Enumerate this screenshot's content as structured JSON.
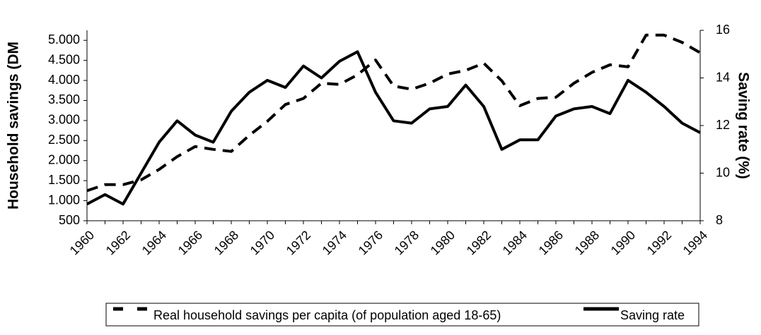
{
  "chart_data": {
    "type": "line",
    "y_label": "Household savings (DM",
    "y2_label": "Saving rate (%)",
    "x": [
      1960,
      1961,
      1962,
      1963,
      1964,
      1965,
      1966,
      1967,
      1968,
      1969,
      1970,
      1971,
      1972,
      1973,
      1974,
      1975,
      1976,
      1977,
      1978,
      1979,
      1980,
      1981,
      1982,
      1983,
      1984,
      1985,
      1986,
      1987,
      1988,
      1989,
      1990,
      1991,
      1992,
      1993,
      1994
    ],
    "xlim": [
      1960,
      1994
    ],
    "xticks": [
      1960,
      1962,
      1964,
      1966,
      1968,
      1970,
      1972,
      1974,
      1976,
      1978,
      1980,
      1982,
      1984,
      1986,
      1988,
      1990,
      1992,
      1994
    ],
    "ylim": [
      500,
      5250
    ],
    "yticks": [
      500,
      {
        "value": 1000,
        "label": "1.000"
      },
      {
        "value": 1500,
        "label": "1.500"
      },
      {
        "value": 2000,
        "label": "2.000"
      },
      {
        "value": 2500,
        "label": "2.500"
      },
      {
        "value": 3000,
        "label": "3.000"
      },
      {
        "value": 3500,
        "label": "3.500"
      },
      {
        "value": 4000,
        "label": "4.000"
      },
      {
        "value": 4500,
        "label": "4.500"
      },
      {
        "value": 5000,
        "label": "5.000"
      }
    ],
    "y2lim": [
      8,
      16
    ],
    "y2ticks": [
      8,
      10,
      12,
      14,
      16
    ],
    "series": [
      {
        "name": "Real household savings per capita (of population aged 18-65)",
        "color": "#000000",
        "dash": true,
        "values": [
          1250,
          1400,
          1400,
          1520,
          1780,
          2100,
          2350,
          2280,
          2230,
          2630,
          2980,
          3400,
          3550,
          3930,
          3900,
          4140,
          4510,
          3860,
          3780,
          3930,
          4160,
          4250,
          4430,
          3990,
          3370,
          3550,
          3580,
          3930,
          4200,
          4390,
          4340,
          5130,
          5130,
          4950,
          4690
        ]
      },
      {
        "name": "Saving rate",
        "color": "#000000",
        "dash": false,
        "axis": "y2",
        "values": [
          8.7,
          9.1,
          8.7,
          10.0,
          11.3,
          12.2,
          11.6,
          11.3,
          12.6,
          13.4,
          13.9,
          13.6,
          14.5,
          14.0,
          14.7,
          15.1,
          13.4,
          12.2,
          12.1,
          12.7,
          12.8,
          13.7,
          12.8,
          11.0,
          11.4,
          11.4,
          12.4,
          12.7,
          12.8,
          12.5,
          13.9,
          13.4,
          12.8,
          12.1,
          11.7
        ]
      }
    ]
  }
}
